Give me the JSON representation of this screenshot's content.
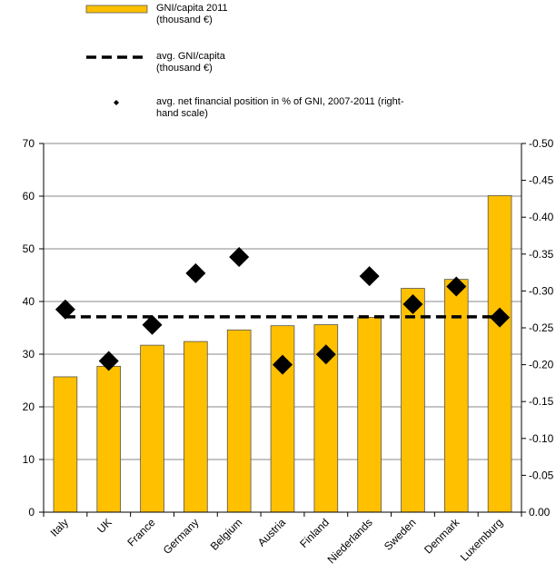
{
  "chart_data": {
    "type": "bar",
    "categories": [
      "Italy",
      "UK",
      "France",
      "Germany",
      "Belgium",
      "Austria",
      "Finland",
      "Niederlands",
      "Sweden",
      "Denmark",
      "Luxemburg"
    ],
    "series": [
      {
        "name": "GNI/capita 2011 (thousand €)",
        "type": "bar",
        "color": "#FFC000",
        "values": [
          25.7,
          27.7,
          31.7,
          32.4,
          34.6,
          35.4,
          35.6,
          37.0,
          42.5,
          44.2,
          60.1
        ]
      },
      {
        "name": "avg. GNI/capita (thousand €)",
        "type": "line",
        "color": "#000000",
        "values": [
          37.1,
          37.1,
          37.1,
          37.1,
          37.1,
          37.1,
          37.1,
          37.1,
          37.1,
          37.1,
          37.1
        ]
      },
      {
        "name": "avg. net financial position in % of GNI, 2007-2011 (right-hand scale)",
        "type": "scatter",
        "axis": "y2",
        "color": "#000000",
        "values": [
          -0.275,
          -0.205,
          -0.254,
          -0.324,
          -0.346,
          -0.2,
          -0.214,
          -0.32,
          -0.282,
          -0.306,
          -0.264
        ]
      }
    ],
    "ylim": [
      0,
      70
    ],
    "yticks": [
      0,
      10,
      20,
      30,
      40,
      50,
      60,
      70
    ],
    "y2lim": [
      0,
      -0.5
    ],
    "y2ticks": [
      {
        "value": 0,
        "label": "0.00"
      },
      {
        "value": -0.05,
        "label": "-0.05"
      },
      {
        "value": -0.1,
        "label": "-0.10"
      },
      {
        "value": -0.15,
        "label": "-0.15"
      },
      {
        "value": -0.2,
        "label": "-0.20"
      },
      {
        "value": -0.25,
        "label": "-0.25"
      },
      {
        "value": -0.3,
        "label": "-0.30"
      },
      {
        "value": -0.35,
        "label": "-0.35"
      },
      {
        "value": -0.4,
        "label": "-0.40"
      },
      {
        "value": -0.45,
        "label": "-0.45"
      },
      {
        "value": -0.5,
        "label": "-0.50"
      }
    ],
    "grid": true
  }
}
